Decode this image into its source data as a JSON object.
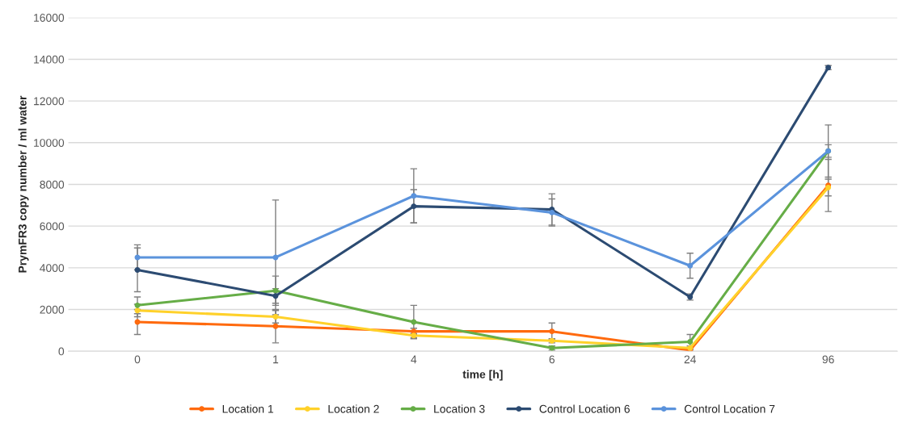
{
  "chart_data": {
    "type": "line",
    "xlabel": "time [h]",
    "ylabel": "PrymFR3 copy number / ml water",
    "categories": [
      "0",
      "1",
      "4",
      "6",
      "24",
      "96"
    ],
    "series": [
      {
        "name": "Location 1",
        "color": "#ff6a0e",
        "values": [
          1400,
          1200,
          950,
          950,
          50,
          7950
        ],
        "errors": [
          600,
          800,
          150,
          400,
          null,
          1250
        ]
      },
      {
        "name": "Location 2",
        "color": "#ffd12a",
        "values": [
          1950,
          1650,
          750,
          500,
          150,
          7850
        ],
        "errors": [
          300,
          300,
          100,
          100,
          100,
          400
        ]
      },
      {
        "name": "Location 3",
        "color": "#66ad47",
        "values": [
          2200,
          2900,
          1400,
          150,
          450,
          9600
        ],
        "errors": [
          400,
          700,
          800,
          100,
          350,
          300
        ]
      },
      {
        "name": "Control Location 6",
        "color": "#2c4b72",
        "values": [
          3900,
          2650,
          6950,
          6800,
          2600,
          13600
        ],
        "errors": [
          1050,
          350,
          800,
          750,
          150,
          100
        ]
      },
      {
        "name": "Control Location 7",
        "color": "#5b93dc",
        "values": [
          4500,
          4500,
          7450,
          6650,
          4100,
          9600
        ],
        "errors": [
          600,
          2750,
          1300,
          650,
          600,
          1250
        ]
      }
    ],
    "ylim": [
      0,
      16000
    ],
    "yticks": [
      0,
      2000,
      4000,
      6000,
      8000,
      10000,
      12000,
      14000,
      16000
    ],
    "grid": "y",
    "legend": "bottom",
    "marker": "circle",
    "line_style": "solid"
  }
}
